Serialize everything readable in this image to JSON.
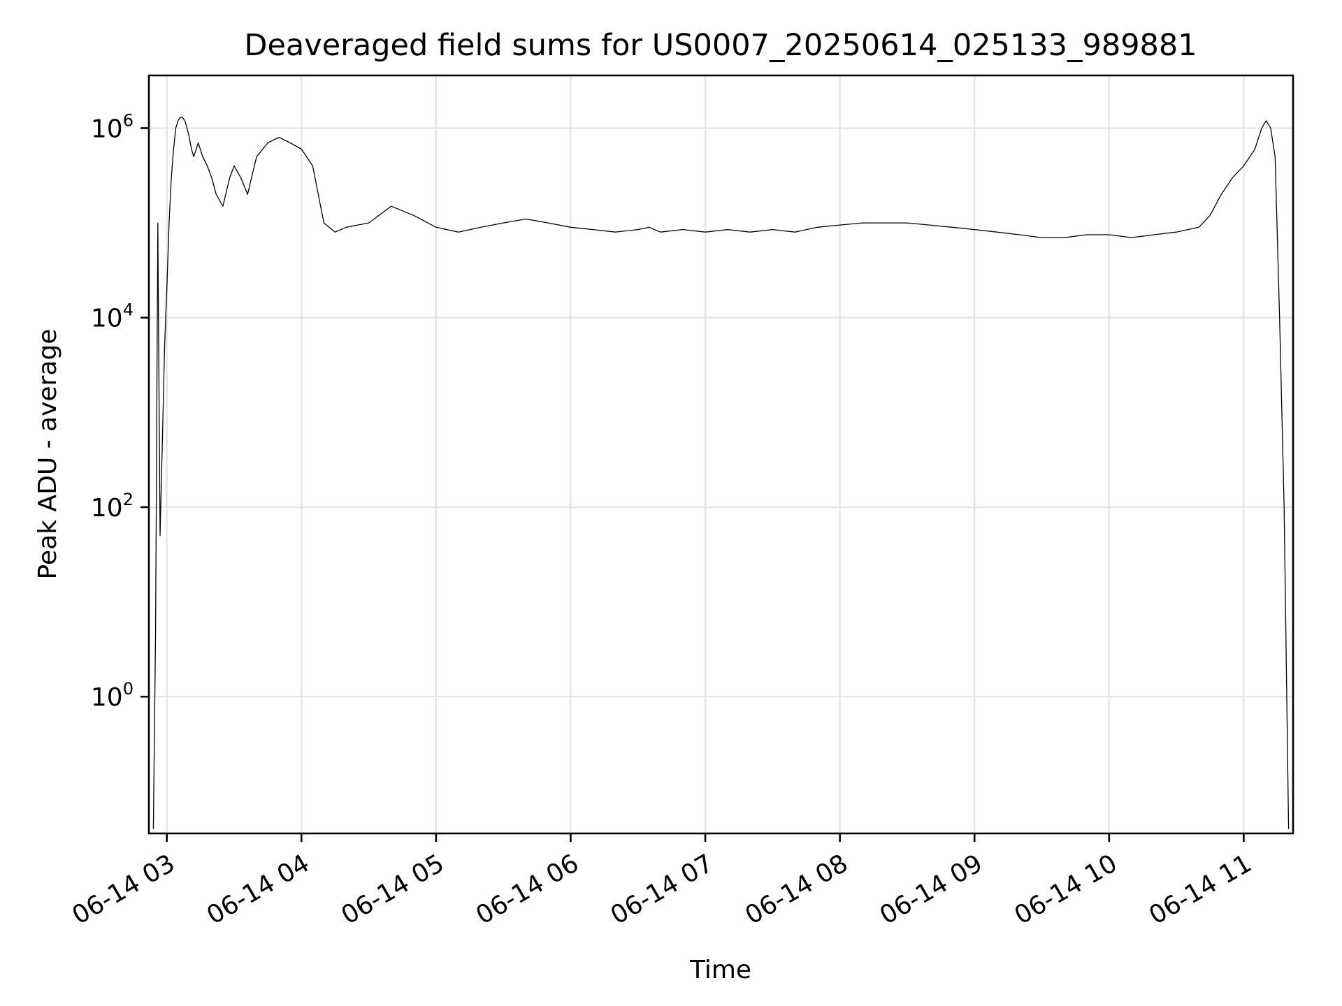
{
  "chart_data": {
    "type": "line",
    "title": "Deaveraged field sums for US0007_20250614_025133_989881",
    "xlabel": "Time",
    "ylabel": "Peak ADU - average",
    "yscale": "log",
    "grid": true,
    "legend": "none",
    "line_color": "#000000",
    "x_ticks": [
      {
        "label": "06-14 03",
        "hour": 3
      },
      {
        "label": "06-14 04",
        "hour": 4
      },
      {
        "label": "06-14 05",
        "hour": 5
      },
      {
        "label": "06-14 06",
        "hour": 6
      },
      {
        "label": "06-14 07",
        "hour": 7
      },
      {
        "label": "06-14 08",
        "hour": 8
      },
      {
        "label": "06-14 09",
        "hour": 9
      },
      {
        "label": "06-14 10",
        "hour": 10
      },
      {
        "label": "06-14 11",
        "hour": 11
      }
    ],
    "y_ticks": [
      {
        "base": "10",
        "exp": "0",
        "value": 1
      },
      {
        "base": "10",
        "exp": "2",
        "value": 100
      },
      {
        "base": "10",
        "exp": "4",
        "value": 10000
      },
      {
        "base": "10",
        "exp": "6",
        "value": 1000000
      }
    ],
    "xlim": [
      "2025-06-14 02:52",
      "2025-06-14 11:22"
    ],
    "ylim": [
      0.036,
      3600000
    ],
    "series": [
      {
        "x": [
          "02:54",
          "02:55",
          "02:56",
          "02:57",
          "02:58",
          "02:59",
          "03:00",
          "03:01",
          "03:02",
          "03:03",
          "03:04",
          "03:05",
          "03:06",
          "03:07",
          "03:08",
          "03:09",
          "03:10",
          "03:11",
          "03:12",
          "03:14",
          "03:16",
          "03:18",
          "03:20",
          "03:22",
          "03:25",
          "03:28",
          "03:30",
          "03:33",
          "03:36",
          "03:40",
          "03:45",
          "03:50",
          "03:55",
          "04:00",
          "04:05",
          "04:10",
          "04:15",
          "04:20",
          "04:30",
          "04:40",
          "04:50",
          "05:00",
          "05:10",
          "05:20",
          "05:30",
          "05:40",
          "05:50",
          "06:00",
          "06:10",
          "06:20",
          "06:30",
          "06:35",
          "06:40",
          "06:50",
          "07:00",
          "07:10",
          "07:20",
          "07:30",
          "07:40",
          "07:50",
          "08:00",
          "08:10",
          "08:20",
          "08:30",
          "08:40",
          "08:50",
          "09:00",
          "09:10",
          "09:20",
          "09:30",
          "09:40",
          "09:50",
          "10:00",
          "10:10",
          "10:20",
          "10:30",
          "10:40",
          "10:45",
          "10:50",
          "10:55",
          "11:00",
          "11:05",
          "11:08",
          "11:10",
          "11:12",
          "11:14",
          "11:16",
          "11:18",
          "11:20"
        ],
        "y": [
          0.04,
          5,
          100000,
          50,
          500,
          5000,
          20000,
          100000,
          300000,
          600000,
          1000000,
          1200000,
          1300000,
          1300000,
          1200000,
          1000000,
          800000,
          600000,
          500000,
          700000,
          500000,
          400000,
          300000,
          200000,
          150000,
          300000,
          400000,
          300000,
          200000,
          500000,
          700000,
          800000,
          700000,
          600000,
          400000,
          100000,
          80000,
          90000,
          100000,
          150000,
          120000,
          90000,
          80000,
          90000,
          100000,
          110000,
          100000,
          90000,
          85000,
          80000,
          85000,
          90000,
          80000,
          85000,
          80000,
          85000,
          80000,
          85000,
          80000,
          90000,
          95000,
          100000,
          100000,
          100000,
          95000,
          90000,
          85000,
          80000,
          75000,
          70000,
          70000,
          75000,
          75000,
          70000,
          75000,
          80000,
          90000,
          120000,
          200000,
          300000,
          400000,
          600000,
          1000000,
          1200000,
          1000000,
          500000,
          10000,
          100,
          0.04
        ]
      }
    ]
  }
}
